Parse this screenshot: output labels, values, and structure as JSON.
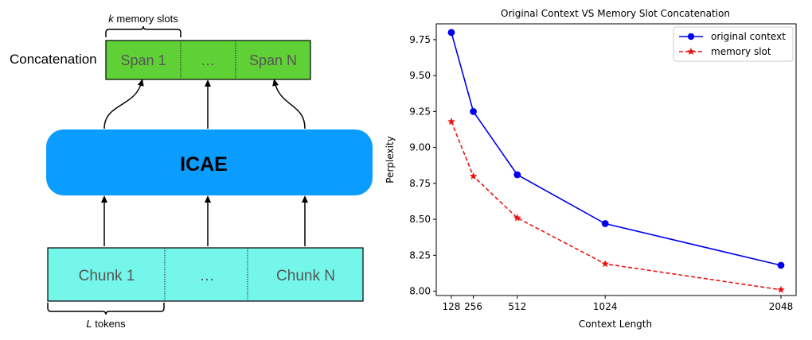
{
  "diagram": {
    "concat_label": "Concatenation",
    "memory_brace_label": "k memory slots",
    "memory_brace_italic": "k",
    "memory_brace_rest": " memory slots",
    "spans": [
      "Span 1",
      "…",
      "Span N"
    ],
    "encoder_label": "ICAE",
    "chunks": [
      "Chunk 1",
      "…",
      "Chunk N"
    ],
    "token_brace_label": "L tokens",
    "token_brace_italic": "L",
    "token_brace_rest": " tokens",
    "colors": {
      "span_fill": "#5fd137",
      "encoder_fill": "#0a9cff",
      "chunk_fill": "#74f7ea",
      "text_gray": "#555555"
    }
  },
  "chart_data": {
    "type": "line",
    "title": "Original Context VS Memory Slot Concatenation",
    "xlabel": "Context Length",
    "ylabel": "Perplexity",
    "x": [
      128,
      256,
      512,
      1024,
      2048
    ],
    "xticks": [
      "128",
      "256",
      "512",
      "1024",
      "2048"
    ],
    "yticks": [
      "8.00",
      "8.25",
      "8.50",
      "8.75",
      "9.00",
      "9.25",
      "9.50",
      "9.75"
    ],
    "ylim": [
      7.97,
      9.86
    ],
    "xlim": [
      40,
      2136
    ],
    "legend_position": "top-right",
    "grid": false,
    "series": [
      {
        "name": "original context",
        "values": [
          9.8,
          9.25,
          8.81,
          8.47,
          8.18
        ],
        "color": "#0000ee",
        "marker": "circle",
        "linestyle": "solid"
      },
      {
        "name": "memory slot",
        "values": [
          9.18,
          8.8,
          8.51,
          8.19,
          8.01
        ],
        "color": "#ee1111",
        "marker": "star",
        "linestyle": "dashed"
      }
    ]
  }
}
